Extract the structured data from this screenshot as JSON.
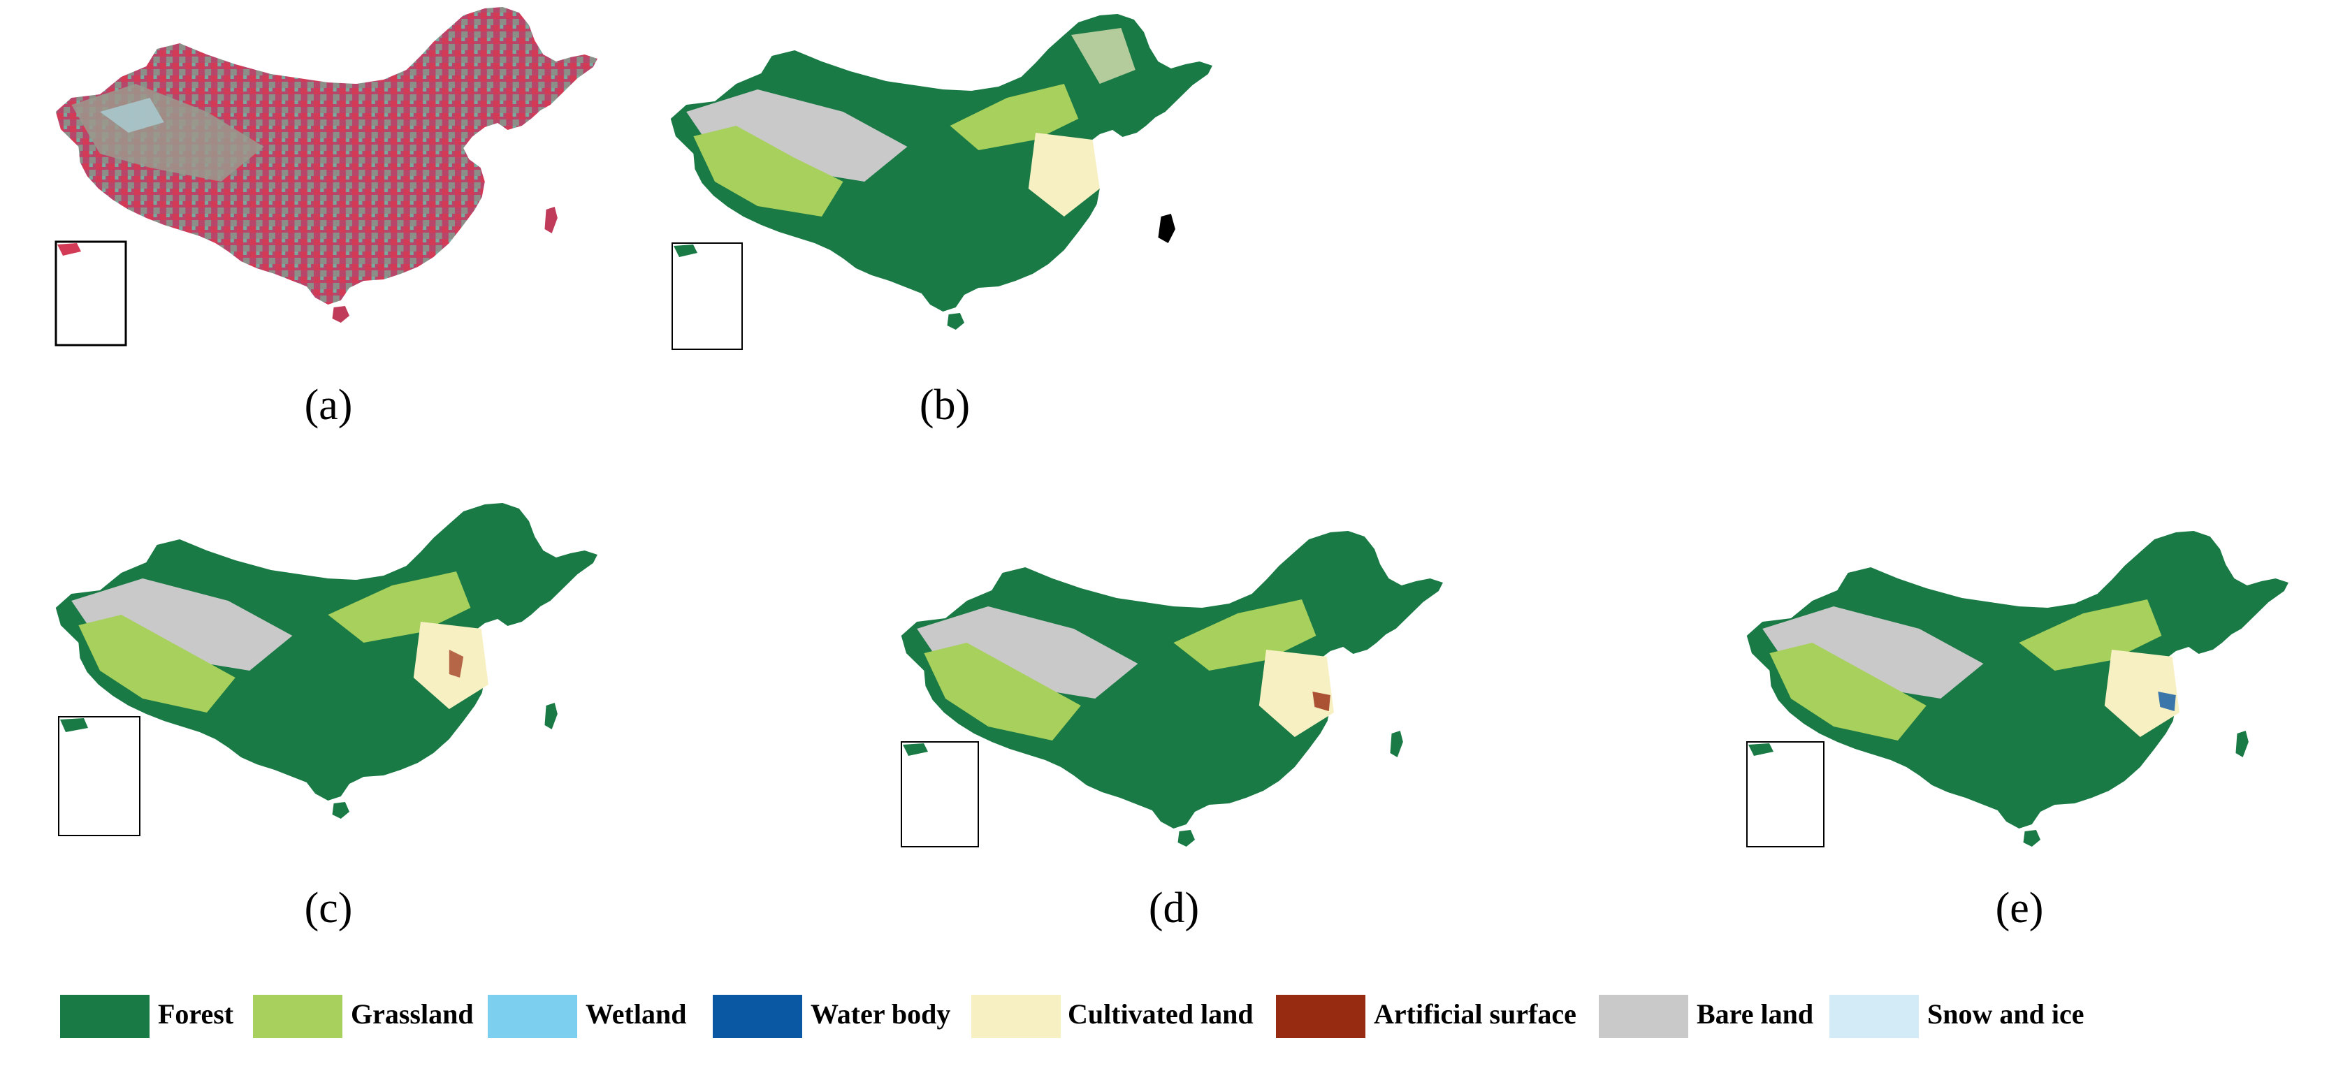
{
  "panels": [
    {
      "label": "(a)",
      "style": "false-color composite"
    },
    {
      "label": "(b)",
      "style": "land cover"
    },
    {
      "label": "(c)",
      "style": "land cover"
    },
    {
      "label": "(d)",
      "style": "land cover"
    },
    {
      "label": "(e)",
      "style": "land cover"
    }
  ],
  "legend": [
    {
      "label": "Forest",
      "color": "#1a7a45"
    },
    {
      "label": "Grassland",
      "color": "#a8d05c"
    },
    {
      "label": "Wetland",
      "color": "#7dcff0"
    },
    {
      "label": "Water body",
      "color": "#0a57a3"
    },
    {
      "label": "Cultivated land",
      "color": "#f7f0c2"
    },
    {
      "label": "Artificial surface",
      "color": "#972b12"
    },
    {
      "label": "Bare land",
      "color": "#c9c9c9"
    },
    {
      "label": "Snow and ice",
      "color": "#d2ebf7"
    }
  ]
}
